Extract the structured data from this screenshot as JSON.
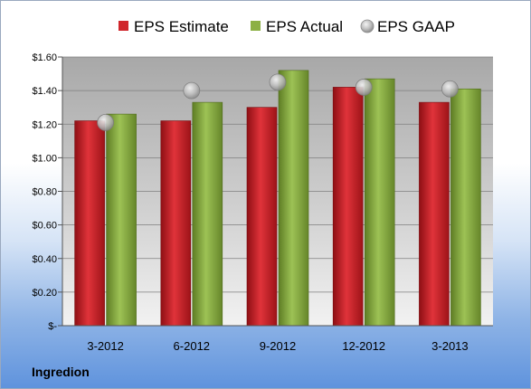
{
  "company": "Ingredion",
  "chart_data": {
    "type": "bar",
    "categories": [
      "3-2012",
      "6-2012",
      "9-2012",
      "12-2012",
      "3-2013"
    ],
    "series": [
      {
        "name": "EPS Estimate",
        "type": "bar",
        "color": "#d0262b",
        "values": [
          1.22,
          1.22,
          1.3,
          1.42,
          1.33
        ]
      },
      {
        "name": "EPS Actual",
        "type": "bar",
        "color": "#8cb045",
        "values": [
          1.26,
          1.33,
          1.52,
          1.47,
          1.41
        ]
      },
      {
        "name": "EPS GAAP",
        "type": "marker",
        "color": "#b8b8b8",
        "values": [
          1.21,
          1.4,
          1.45,
          1.42,
          1.41
        ]
      }
    ],
    "yticks": [
      "$-",
      "$0.20",
      "$0.40",
      "$0.60",
      "$0.80",
      "$1.00",
      "$1.20",
      "$1.40",
      "$1.60"
    ],
    "ylim": [
      0,
      1.6
    ],
    "ystep": 0.2,
    "grid": true,
    "legend_position": "top"
  }
}
